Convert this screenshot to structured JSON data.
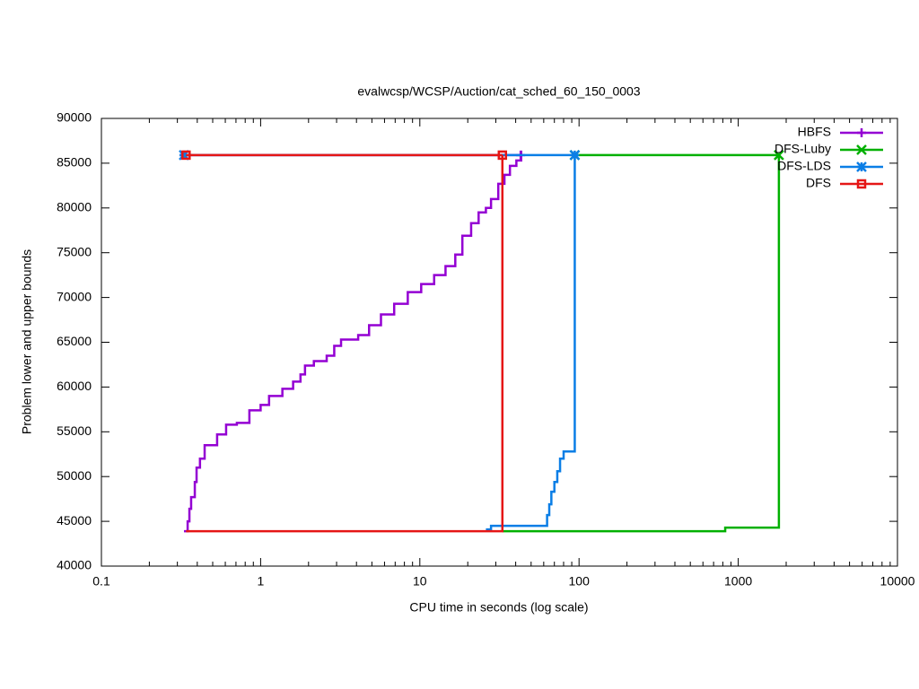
{
  "chart_data": {
    "type": "line",
    "title": "evalwcsp/WCSP/Auction/cat_sched_60_150_0003",
    "xlabel": "CPU time in seconds (log scale)",
    "ylabel": "Problem lower and upper bounds",
    "xlog": true,
    "xlim": [
      0.1,
      10000
    ],
    "xticks": [
      0.1,
      1,
      10,
      100,
      1000,
      10000
    ],
    "ylim": [
      40000,
      90000
    ],
    "yticks": [
      40000,
      45000,
      50000,
      55000,
      60000,
      65000,
      70000,
      75000,
      80000,
      85000,
      90000
    ],
    "legend": "top-right",
    "step": true,
    "series": [
      {
        "name": "HBFS",
        "color": "#9400d3",
        "marker": "plus",
        "x": [
          0.33,
          43,
          null,
          0.33,
          0.348,
          0.357,
          0.366,
          0.386,
          0.396,
          0.416,
          0.445,
          0.533,
          0.607,
          0.709,
          0.85,
          1.0,
          1.13,
          1.37,
          1.6,
          1.78,
          1.9,
          2.16,
          2.6,
          2.9,
          3.2,
          4.1,
          4.8,
          5.7,
          6.9,
          8.4,
          10.2,
          12.3,
          14.5,
          16.7,
          18.5,
          21,
          23.4,
          26,
          28,
          31.1,
          34,
          36.8,
          40.4,
          43.3
        ],
        "values": [
          85900,
          85900,
          null,
          43900,
          45000,
          46400,
          47700,
          49400,
          51000,
          52000,
          53500,
          54700,
          55800,
          56000,
          57400,
          58000,
          59000,
          59800,
          60600,
          61400,
          62400,
          62900,
          63500,
          64600,
          65300,
          65800,
          66900,
          68100,
          69300,
          70600,
          71500,
          72500,
          73500,
          74800,
          76900,
          78300,
          79500,
          80000,
          81000,
          82700,
          83700,
          84700,
          85300,
          86400
        ]
      },
      {
        "name": "DFS-Luby",
        "color": "#00b000",
        "marker": "cross",
        "x": [
          94,
          1800,
          null,
          33,
          828,
          1800
        ],
        "values": [
          85900,
          85900,
          null,
          43900,
          44300,
          85900
        ]
      },
      {
        "name": "DFS-LDS",
        "color": "#0a7ee6",
        "marker": "star",
        "x": [
          0.33,
          94,
          null,
          26,
          28,
          63,
          65,
          67,
          70,
          73,
          76,
          80,
          94
        ],
        "values": [
          85900,
          85900,
          null,
          44100,
          44500,
          45700,
          46900,
          48300,
          49400,
          50600,
          52000,
          52800,
          85900
        ]
      },
      {
        "name": "DFS",
        "color": "#e51616",
        "marker": "square",
        "x": [
          0.34,
          33,
          null,
          0.34,
          33
        ],
        "values": [
          85900,
          85900,
          null,
          43900,
          85900
        ]
      }
    ]
  }
}
